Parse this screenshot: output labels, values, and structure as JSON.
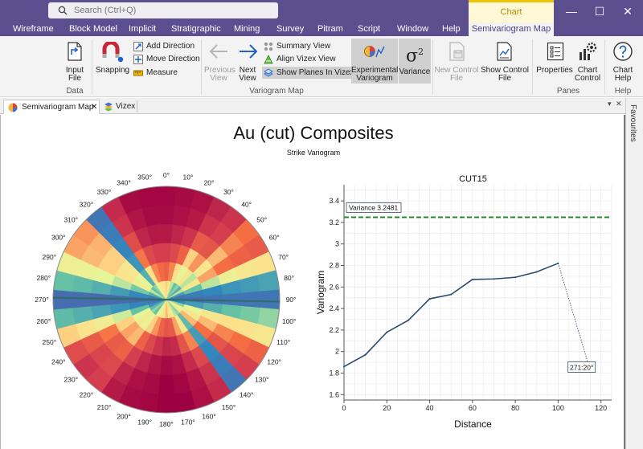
{
  "search": {
    "placeholder": "Search (Ctrl+Q)"
  },
  "context_tab": {
    "label": "Chart"
  },
  "window_controls": {
    "minimize": "—",
    "maximize": "☐",
    "close": "✕"
  },
  "tabs": [
    {
      "label": "Wireframe"
    },
    {
      "label": "Block Model"
    },
    {
      "label": "Implicit"
    },
    {
      "label": "Stratigraphic"
    },
    {
      "label": "Mining"
    },
    {
      "label": "Survey"
    },
    {
      "label": "Pitram"
    },
    {
      "label": "Script"
    },
    {
      "label": "Window"
    },
    {
      "label": "Help"
    },
    {
      "label": "Semivariogram Map"
    }
  ],
  "ribbon": {
    "input_file": {
      "line1": "Input",
      "line2": "File"
    },
    "snapping": {
      "label": "Snapping"
    },
    "add_direction": {
      "label": "Add Direction"
    },
    "move_direction": {
      "label": "Move Direction"
    },
    "measure": {
      "label": "Measure"
    },
    "previous_view": {
      "line1": "Previous",
      "line2": "View"
    },
    "next_view": {
      "line1": "Next",
      "line2": "View"
    },
    "summary_view": {
      "label": "Summary View"
    },
    "align_vizex_view": {
      "label": "Align Vizex View"
    },
    "show_planes": {
      "label": "Show Planes In Vizex"
    },
    "experimental_variogram": {
      "line1": "Experimental",
      "line2": "Variogram"
    },
    "variance": {
      "label": "Variance",
      "symbol": "σ",
      "sup": "2"
    },
    "new_control_file": {
      "line1": "New Control",
      "line2": "File"
    },
    "show_control_file": {
      "line1": "Show Control",
      "line2": "File"
    },
    "properties": {
      "label": "Properties"
    },
    "chart_control": {
      "line1": "Chart",
      "line2": "Control"
    },
    "chart_help": {
      "line1": "Chart",
      "line2": "Help"
    },
    "groups": {
      "data": "Data",
      "variogram_map": "Variogram Map",
      "panes": "Panes",
      "help": "Help"
    }
  },
  "doc_tabs": {
    "semivariogram": {
      "label": "Semivariogram Map",
      "close": "✕"
    },
    "vizex": {
      "label": "Vizex",
      "close": "✕"
    }
  },
  "favourites": "Favourites",
  "page": {
    "title": "Au (cut) Composites",
    "subtitle": "Strike Variogram"
  },
  "rose": {
    "angle_step": 10,
    "ring_count": 6,
    "sector_values": [
      [
        0.62,
        0.78,
        0.88,
        0.95,
        0.98,
        0.99
      ],
      [
        0.55,
        0.72,
        0.85,
        0.93,
        0.97,
        0.98
      ],
      [
        0.4,
        0.6,
        0.78,
        0.9,
        0.95,
        0.97
      ],
      [
        0.3,
        0.45,
        0.62,
        0.8,
        0.9,
        0.93
      ],
      [
        0.35,
        0.55,
        0.7,
        0.82,
        0.88,
        0.9
      ],
      [
        0.25,
        0.4,
        0.55,
        0.65,
        0.72,
        0.75
      ],
      [
        0.4,
        0.55,
        0.68,
        0.75,
        0.78,
        0.8
      ],
      [
        0.2,
        0.3,
        0.4,
        0.5,
        0.55,
        0.58
      ],
      [
        0.1,
        0.12,
        0.15,
        0.18,
        0.2,
        0.22
      ],
      [
        0.08,
        0.08,
        0.09,
        0.1,
        0.1,
        0.1
      ],
      [
        0.15,
        0.2,
        0.25,
        0.3,
        0.32,
        0.35
      ],
      [
        0.35,
        0.45,
        0.55,
        0.6,
        0.58,
        0.55
      ],
      [
        0.45,
        0.55,
        0.65,
        0.72,
        0.75,
        0.78
      ],
      [
        0.55,
        0.65,
        0.75,
        0.82,
        0.86,
        0.88
      ],
      [
        0.35,
        0.28,
        0.2,
        0.15,
        0.12,
        0.1
      ],
      [
        0.4,
        0.55,
        0.72,
        0.85,
        0.9,
        0.92
      ],
      [
        0.5,
        0.68,
        0.82,
        0.92,
        0.96,
        0.97
      ],
      [
        0.6,
        0.8,
        0.92,
        0.97,
        0.99,
        1.0
      ],
      [
        0.65,
        0.82,
        0.93,
        0.98,
        1.0,
        1.0
      ],
      [
        0.6,
        0.78,
        0.9,
        0.96,
        0.98,
        0.99
      ],
      [
        0.52,
        0.7,
        0.85,
        0.93,
        0.97,
        0.98
      ],
      [
        0.45,
        0.62,
        0.78,
        0.88,
        0.93,
        0.95
      ],
      [
        0.3,
        0.48,
        0.65,
        0.78,
        0.85,
        0.88
      ],
      [
        0.35,
        0.52,
        0.68,
        0.8,
        0.86,
        0.9
      ],
      [
        0.28,
        0.45,
        0.62,
        0.74,
        0.8,
        0.84
      ],
      [
        0.18,
        0.3,
        0.42,
        0.52,
        0.58,
        0.62
      ],
      [
        0.1,
        0.14,
        0.18,
        0.22,
        0.25,
        0.28
      ],
      [
        0.06,
        0.06,
        0.07,
        0.07,
        0.08,
        0.08
      ],
      [
        0.12,
        0.15,
        0.2,
        0.25,
        0.28,
        0.3
      ],
      [
        0.25,
        0.32,
        0.4,
        0.45,
        0.48,
        0.5
      ],
      [
        0.4,
        0.5,
        0.58,
        0.62,
        0.65,
        0.68
      ],
      [
        0.3,
        0.45,
        0.55,
        0.62,
        0.66,
        0.7
      ],
      [
        0.35,
        0.25,
        0.18,
        0.14,
        0.12,
        0.1
      ],
      [
        0.45,
        0.6,
        0.74,
        0.84,
        0.9,
        0.92
      ],
      [
        0.55,
        0.72,
        0.85,
        0.93,
        0.96,
        0.98
      ],
      [
        0.6,
        0.76,
        0.88,
        0.95,
        0.98,
        0.99
      ]
    ]
  },
  "chart_data": {
    "type": "line",
    "title": "CUT15",
    "xlabel": "Distance",
    "ylabel": "Variogram",
    "xlim": [
      0,
      125
    ],
    "ylim": [
      1.55,
      3.55
    ],
    "xticks": [
      0,
      20,
      40,
      60,
      80,
      100,
      120
    ],
    "yticks": [
      1.6,
      1.8,
      2,
      2.2,
      2.4,
      2.6,
      2.8,
      3,
      3.2,
      3.4
    ],
    "grid": true,
    "series": [
      {
        "x": [
          0,
          10,
          20,
          30,
          40,
          50,
          60,
          70,
          80,
          90,
          100
        ],
        "y": [
          1.86,
          1.97,
          2.18,
          2.29,
          2.49,
          2.53,
          2.67,
          2.675,
          2.69,
          2.74,
          2.82
        ]
      }
    ],
    "variance": {
      "value": 3.2481,
      "label": "Variance 3.2481"
    },
    "annotation": {
      "label": "271:20°",
      "x": 114,
      "y": 1.86
    },
    "angle_labels": [
      "0°",
      "10°",
      "20°",
      "30°",
      "40°",
      "50°",
      "60°",
      "70°",
      "80°",
      "90°",
      "100°",
      "110°",
      "120°",
      "130°",
      "140°",
      "150°",
      "160°",
      "170°",
      "180°",
      "190°",
      "200°",
      "210°",
      "220°",
      "230°",
      "240°",
      "250°",
      "260°",
      "270°",
      "280°",
      "290°",
      "300°",
      "310°",
      "320°",
      "330°",
      "340°",
      "350°"
    ]
  }
}
